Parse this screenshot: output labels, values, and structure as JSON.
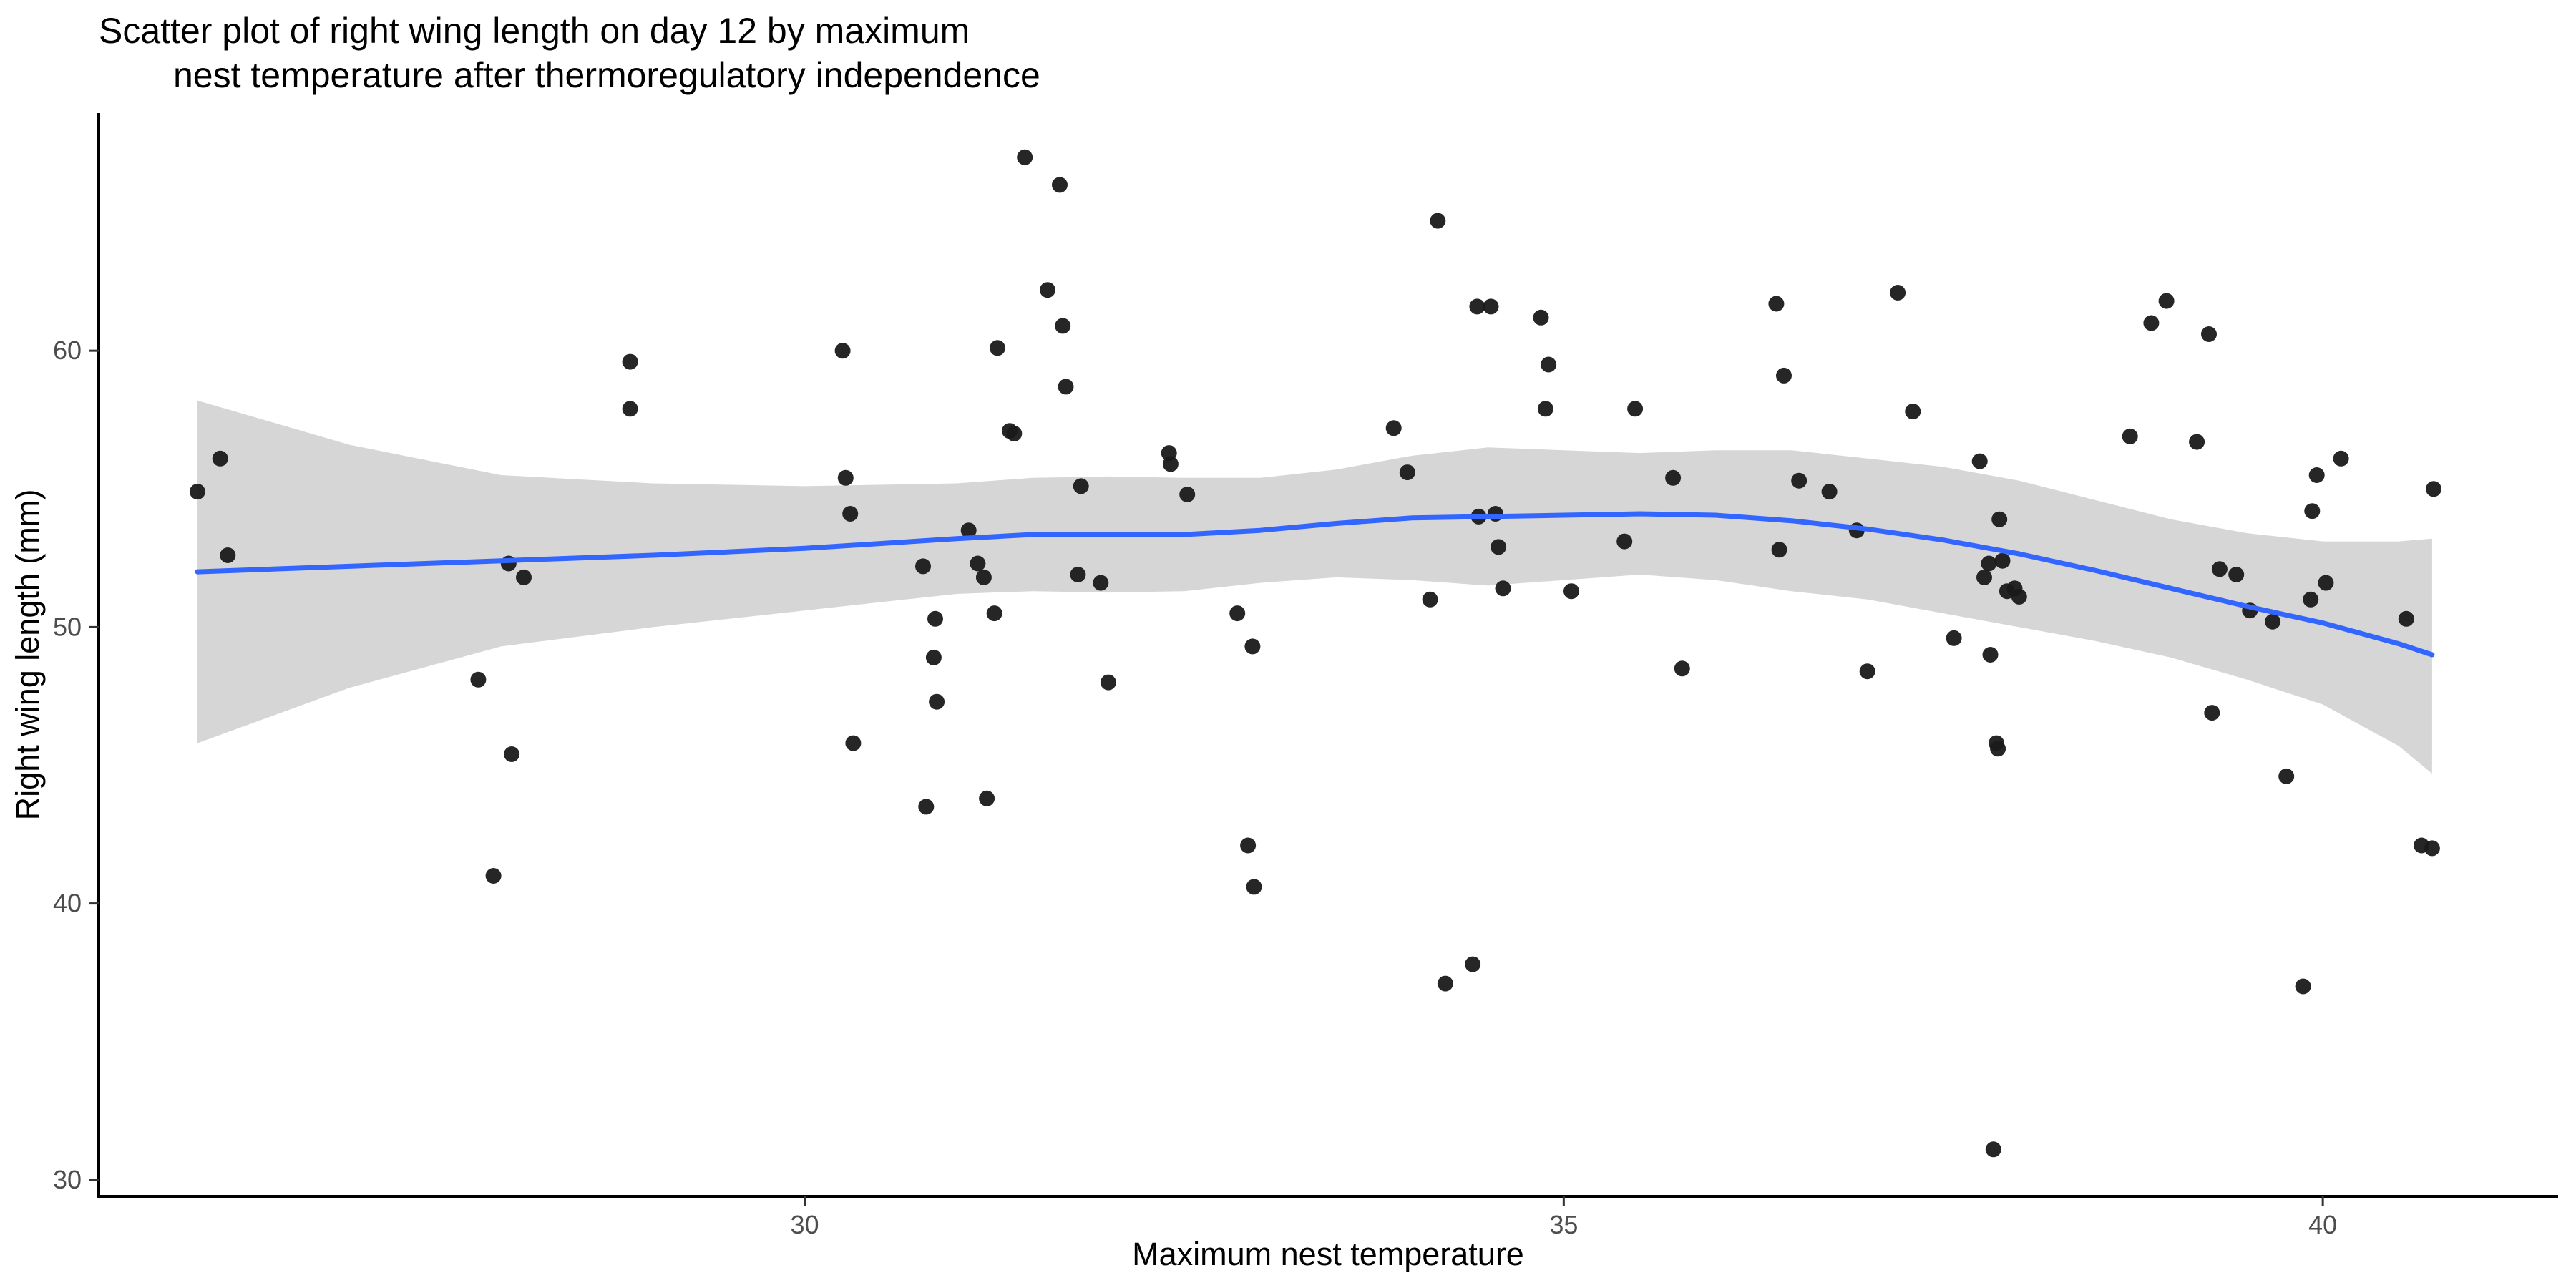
{
  "chart_data": {
    "type": "scatter",
    "title": "Scatter plot of right wing length on day 12 by maximum\n        nest temperature after thermoregulatory independence",
    "xlabel": "Maximum nest temperature",
    "ylabel": "Right wing length (mm)",
    "xlim": [
      25.35,
      41.55
    ],
    "ylim": [
      29.4,
      68.6
    ],
    "xticks": [
      30,
      35,
      40
    ],
    "yticks": [
      30,
      40,
      50,
      60
    ],
    "grid": false,
    "legend": "none",
    "colors": {
      "points": "#1a1a1a",
      "smooth_line": "#3366ff",
      "confidence_band": "#d6d6d6"
    },
    "points": [
      [
        26.0,
        54.9
      ],
      [
        26.15,
        56.1
      ],
      [
        26.2,
        52.6
      ],
      [
        27.85,
        48.1
      ],
      [
        27.95,
        41.0
      ],
      [
        28.05,
        52.3
      ],
      [
        28.07,
        45.4
      ],
      [
        28.15,
        51.8
      ],
      [
        28.85,
        59.6
      ],
      [
        28.85,
        57.9
      ],
      [
        30.25,
        60.0
      ],
      [
        30.27,
        55.4
      ],
      [
        30.3,
        54.1
      ],
      [
        30.32,
        45.8
      ],
      [
        30.78,
        52.2
      ],
      [
        30.8,
        43.5
      ],
      [
        30.85,
        48.9
      ],
      [
        30.86,
        50.3
      ],
      [
        30.87,
        47.3
      ],
      [
        31.08,
        53.5
      ],
      [
        31.14,
        52.3
      ],
      [
        31.18,
        51.8
      ],
      [
        31.2,
        43.8
      ],
      [
        31.25,
        50.5
      ],
      [
        31.27,
        60.1
      ],
      [
        31.35,
        57.1
      ],
      [
        31.38,
        57.0
      ],
      [
        31.45,
        67.0
      ],
      [
        31.6,
        62.2
      ],
      [
        31.68,
        66.0
      ],
      [
        31.7,
        60.9
      ],
      [
        31.72,
        58.7
      ],
      [
        31.8,
        51.9
      ],
      [
        31.82,
        55.1
      ],
      [
        31.95,
        51.6
      ],
      [
        32.0,
        48.0
      ],
      [
        32.4,
        56.3
      ],
      [
        32.41,
        55.9
      ],
      [
        32.52,
        54.8
      ],
      [
        32.85,
        50.5
      ],
      [
        32.92,
        42.1
      ],
      [
        32.95,
        49.3
      ],
      [
        32.96,
        40.6
      ],
      [
        33.88,
        57.2
      ],
      [
        33.97,
        55.6
      ],
      [
        34.12,
        51.0
      ],
      [
        34.17,
        64.7
      ],
      [
        34.22,
        37.1
      ],
      [
        34.4,
        37.8
      ],
      [
        34.43,
        61.6
      ],
      [
        34.44,
        54.0
      ],
      [
        34.52,
        61.6
      ],
      [
        34.55,
        54.1
      ],
      [
        34.57,
        52.9
      ],
      [
        34.6,
        51.4
      ],
      [
        34.85,
        61.2
      ],
      [
        34.88,
        57.9
      ],
      [
        34.9,
        59.5
      ],
      [
        35.05,
        51.3
      ],
      [
        35.4,
        53.1
      ],
      [
        35.47,
        57.9
      ],
      [
        35.72,
        55.4
      ],
      [
        35.78,
        48.5
      ],
      [
        36.4,
        61.7
      ],
      [
        36.42,
        52.8
      ],
      [
        36.45,
        59.1
      ],
      [
        36.55,
        55.3
      ],
      [
        36.75,
        54.9
      ],
      [
        36.93,
        53.5
      ],
      [
        37.0,
        48.4
      ],
      [
        37.2,
        62.1
      ],
      [
        37.3,
        57.8
      ],
      [
        37.57,
        49.6
      ],
      [
        37.74,
        56.0
      ],
      [
        37.77,
        51.8
      ],
      [
        37.8,
        52.3
      ],
      [
        37.81,
        49.0
      ],
      [
        37.83,
        31.1
      ],
      [
        37.85,
        45.8
      ],
      [
        37.86,
        45.6
      ],
      [
        37.87,
        53.9
      ],
      [
        37.89,
        52.4
      ],
      [
        37.92,
        51.3
      ],
      [
        37.97,
        51.4
      ],
      [
        38.0,
        51.1
      ],
      [
        38.73,
        56.9
      ],
      [
        38.87,
        61.0
      ],
      [
        38.97,
        61.8
      ],
      [
        39.17,
        56.7
      ],
      [
        39.25,
        60.6
      ],
      [
        39.27,
        46.9
      ],
      [
        39.32,
        52.1
      ],
      [
        39.43,
        51.9
      ],
      [
        39.52,
        50.6
      ],
      [
        39.67,
        50.2
      ],
      [
        39.76,
        44.6
      ],
      [
        39.87,
        37.0
      ],
      [
        39.92,
        51.0
      ],
      [
        39.93,
        54.2
      ],
      [
        39.96,
        55.5
      ],
      [
        40.02,
        51.6
      ],
      [
        40.12,
        56.1
      ],
      [
        40.55,
        50.3
      ],
      [
        40.65,
        42.1
      ],
      [
        40.72,
        42.0
      ],
      [
        40.73,
        55.0
      ]
    ],
    "smooth": {
      "x": [
        26.0,
        27.0,
        28.0,
        29.0,
        30.0,
        31.0,
        31.5,
        32.0,
        32.5,
        33.0,
        33.5,
        34.0,
        34.5,
        35.0,
        35.5,
        36.0,
        36.5,
        37.0,
        37.5,
        38.0,
        38.5,
        39.0,
        39.5,
        40.0,
        40.5,
        40.72
      ],
      "y": [
        52.0,
        52.2,
        52.4,
        52.6,
        52.85,
        53.2,
        53.35,
        53.35,
        53.35,
        53.5,
        53.75,
        53.95,
        54.0,
        54.05,
        54.1,
        54.05,
        53.85,
        53.55,
        53.15,
        52.65,
        52.05,
        51.4,
        50.75,
        50.15,
        49.4,
        49.0
      ]
    },
    "band_upper": [
      58.2,
      56.6,
      55.5,
      55.2,
      55.1,
      55.2,
      55.4,
      55.45,
      55.4,
      55.4,
      55.7,
      56.2,
      56.5,
      56.4,
      56.3,
      56.4,
      56.4,
      56.1,
      55.8,
      55.3,
      54.6,
      53.9,
      53.4,
      53.1,
      53.1,
      53.2
    ],
    "band_lower": [
      45.8,
      47.8,
      49.3,
      50.0,
      50.6,
      51.2,
      51.3,
      51.25,
      51.3,
      51.6,
      51.8,
      51.7,
      51.5,
      51.7,
      51.9,
      51.7,
      51.3,
      51.0,
      50.5,
      50.0,
      49.5,
      48.9,
      48.1,
      47.2,
      45.7,
      44.7
    ]
  }
}
